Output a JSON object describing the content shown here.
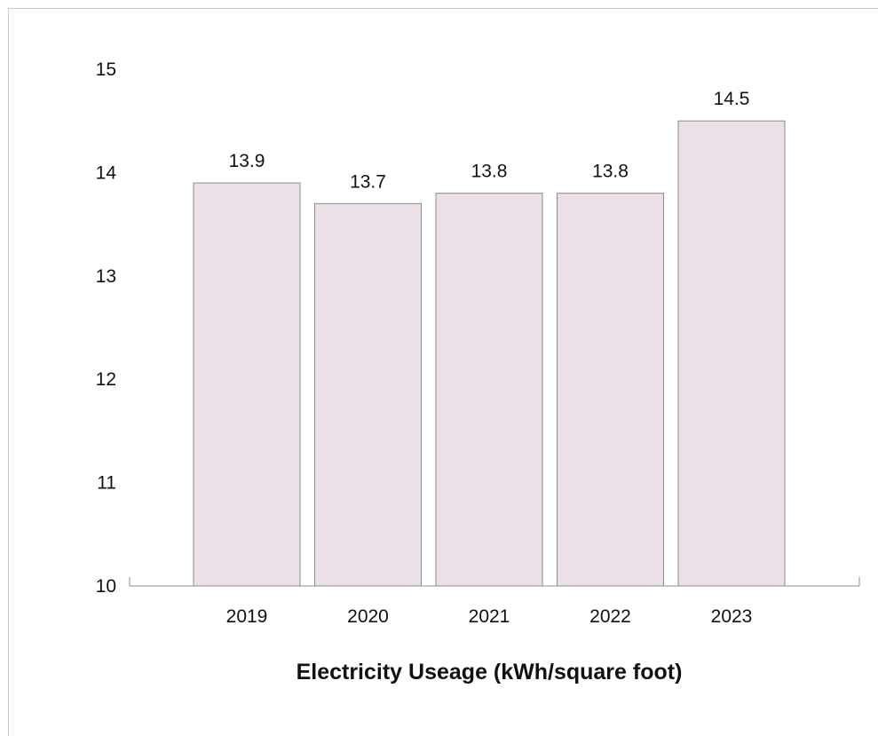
{
  "chart_data": {
    "type": "bar",
    "categories": [
      "2019",
      "2020",
      "2021",
      "2022",
      "2023"
    ],
    "values": [
      13.9,
      13.7,
      13.8,
      13.8,
      14.5
    ],
    "data_labels": [
      "13.9",
      "13.7",
      "13.8",
      "13.8",
      "14.5"
    ],
    "title": "",
    "xlabel": "Electricity Useage (kWh/square foot)",
    "ylabel": "",
    "ylim": [
      10,
      15
    ],
    "yticks": [
      "10",
      "11",
      "12",
      "13",
      "14",
      "15"
    ],
    "grid": false,
    "legend": "none",
    "colors": {
      "bar_fill": "#ebe0e8",
      "bar_stroke": "#8c8c8c",
      "axis": "#8c8c8c",
      "text": "#111111"
    }
  }
}
